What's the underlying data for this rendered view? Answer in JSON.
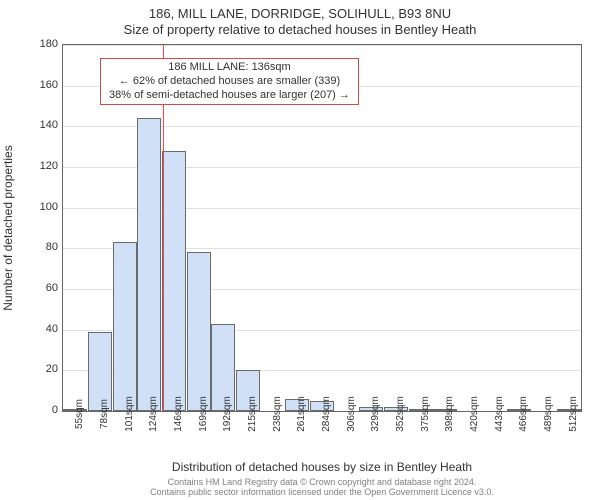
{
  "title": "186, MILL LANE, DORRIDGE, SOLIHULL, B93 8NU",
  "subtitle": "Size of property relative to detached houses in Bentley Heath",
  "ylabel": "Number of detached properties",
  "xlabel": "Distribution of detached houses by size in Bentley Heath",
  "copyright_line1": "Contains HM Land Registry data © Crown copyright and database right 2024.",
  "copyright_line2": "Contains public sector information licensed under the Open Government Licence v3.0.",
  "histogram": {
    "type": "histogram",
    "ylim": [
      0,
      180
    ],
    "ytick_step": 20,
    "bar_fill": "#cfe0f7",
    "bar_stroke": "#6b6b6b",
    "background": "#ffffff",
    "grid_color": "#e0e0e0",
    "border_color": "#666666",
    "x_categories": [
      "55sqm",
      "78sqm",
      "101sqm",
      "124sqm",
      "146sqm",
      "169sqm",
      "192sqm",
      "215sqm",
      "238sqm",
      "261sqm",
      "284sqm",
      "306sqm",
      "329sqm",
      "352sqm",
      "375sqm",
      "398sqm",
      "420sqm",
      "443sqm",
      "466sqm",
      "489sqm",
      "512sqm"
    ],
    "values": [
      1,
      39,
      83,
      144,
      128,
      78,
      43,
      20,
      0,
      6,
      5,
      0,
      2,
      2,
      1,
      1,
      0,
      0,
      1,
      0,
      1
    ],
    "marker_line": {
      "color": "#ff4444",
      "value_label": "136sqm",
      "position_index": 3.55
    }
  },
  "annotation": {
    "border_color": "#d04a4a",
    "line1": "186 MILL LANE: 136sqm",
    "line2": "← 62% of detached houses are smaller (339)",
    "line3": "38% of semi-detached houses are larger (207) →"
  }
}
